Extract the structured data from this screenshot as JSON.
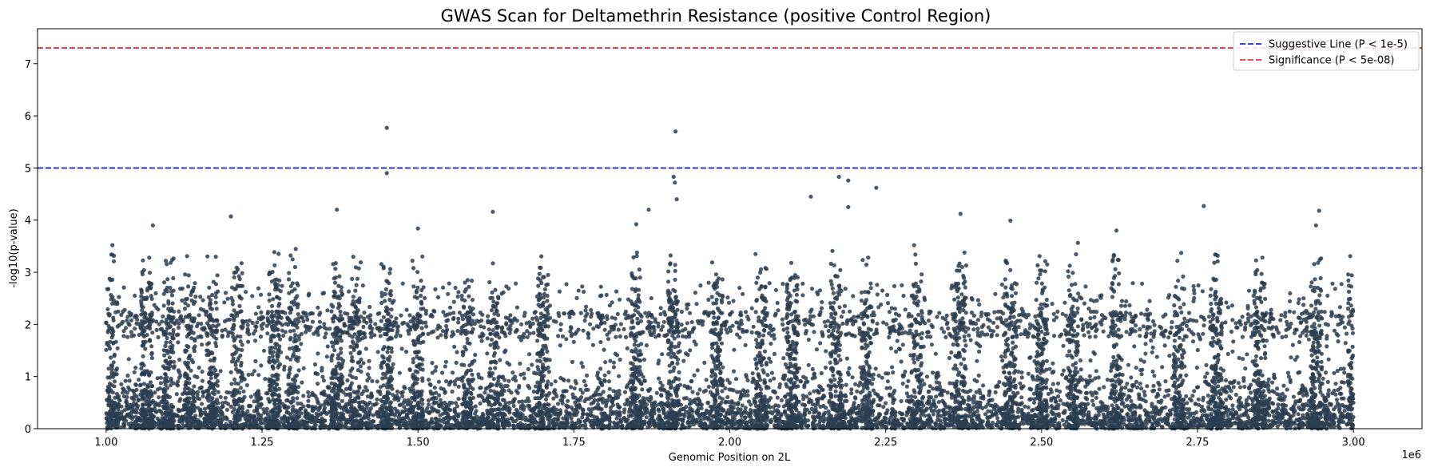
{
  "chart_data": {
    "type": "scatter",
    "title": "GWAS Scan for Deltamethrin Resistance (positive Control Region)",
    "xlabel": "Genomic Position on 2L",
    "ylabel": "-log10(p-value)",
    "x_offset_label": "1e6",
    "xlim": [
      0.89,
      3.11
    ],
    "ylim": [
      0,
      7.67
    ],
    "x_ticks": [
      1.0,
      1.25,
      1.5,
      1.75,
      2.0,
      2.25,
      2.5,
      2.75,
      3.0
    ],
    "x_tick_labels": [
      "1.00",
      "1.25",
      "1.50",
      "1.75",
      "2.00",
      "2.25",
      "2.50",
      "2.75",
      "3.00"
    ],
    "y_ticks": [
      0,
      1,
      2,
      3,
      4,
      5,
      6,
      7
    ],
    "y_tick_labels": [
      "0",
      "1",
      "2",
      "3",
      "4",
      "5",
      "6",
      "7"
    ],
    "grid": false,
    "point_color": "#2c3e50",
    "data_range": [
      1.0,
      3.0
    ],
    "clusters": [
      1.01,
      1.065,
      1.1,
      1.135,
      1.17,
      1.21,
      1.27,
      1.3,
      1.37,
      1.4,
      1.45,
      1.5,
      1.58,
      1.62,
      1.7,
      1.85,
      1.91,
      1.98,
      2.05,
      2.1,
      2.17,
      2.22,
      2.3,
      2.37,
      2.45,
      2.5,
      2.55,
      2.62,
      2.72,
      2.78,
      2.85,
      2.94,
      3.0
    ],
    "top_hits": [
      {
        "x": 1.45,
        "y": 5.77
      },
      {
        "x": 1.45,
        "y": 4.9
      },
      {
        "x": 1.913,
        "y": 5.7
      },
      {
        "x": 1.91,
        "y": 4.83
      },
      {
        "x": 1.912,
        "y": 4.72
      },
      {
        "x": 1.915,
        "y": 4.4
      },
      {
        "x": 2.175,
        "y": 4.83
      },
      {
        "x": 2.19,
        "y": 4.76
      },
      {
        "x": 2.19,
        "y": 4.25
      },
      {
        "x": 2.235,
        "y": 4.62
      },
      {
        "x": 2.13,
        "y": 4.45
      },
      {
        "x": 1.37,
        "y": 4.2
      },
      {
        "x": 1.2,
        "y": 4.07
      },
      {
        "x": 1.62,
        "y": 4.16
      },
      {
        "x": 1.87,
        "y": 4.2
      },
      {
        "x": 2.37,
        "y": 4.12
      },
      {
        "x": 2.45,
        "y": 3.99
      },
      {
        "x": 2.76,
        "y": 4.27
      },
      {
        "x": 2.945,
        "y": 4.18
      },
      {
        "x": 1.075,
        "y": 3.9
      },
      {
        "x": 1.01,
        "y": 3.52
      },
      {
        "x": 1.5,
        "y": 3.84
      },
      {
        "x": 1.85,
        "y": 3.92
      },
      {
        "x": 2.62,
        "y": 3.8
      },
      {
        "x": 2.94,
        "y": 3.9
      }
    ],
    "series": [
      {
        "name": "Suggestive Line (P < 1e-5)",
        "kind": "hline",
        "y": 5,
        "color": "#0000cc",
        "style": "dashed"
      },
      {
        "name": "Significance (P < 5e-08)",
        "kind": "hline",
        "y": 7.30103,
        "color": "#e8161a",
        "style": "dashed"
      }
    ],
    "legend": "top-right"
  }
}
